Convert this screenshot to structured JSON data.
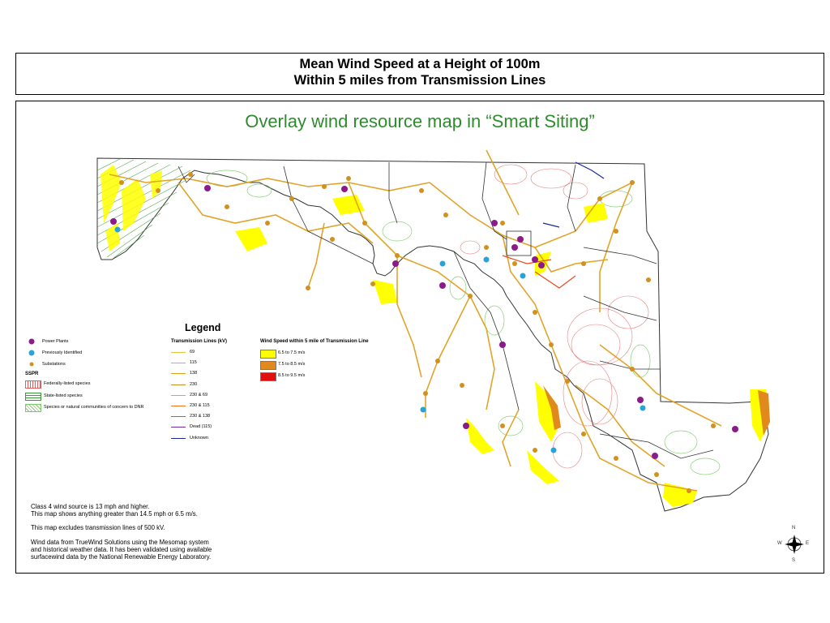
{
  "title": {
    "line1": "Mean Wind Speed at a Height of 100m",
    "line2": "Within 5 miles from Transmission Lines"
  },
  "subtitle": "Overlay wind resource map in “Smart Siting”",
  "legend": {
    "title": "Legend",
    "points": [
      {
        "label": "Power Plants",
        "color": "#8b1a8b"
      },
      {
        "label": "Previously Identified",
        "color": "#29a3d6"
      },
      {
        "label": "Substations",
        "color": "#d4901f"
      }
    ],
    "sspr_label": "SSPR",
    "species": [
      {
        "label": "Federally-listed species",
        "color": "#e06060"
      },
      {
        "label": "State-listed species",
        "color": "#3a9a3a"
      },
      {
        "label": "Species or natural communities of concern to DNR",
        "color": "#7cc96a"
      }
    ],
    "transmission_title": "Transmission Lines (kV)",
    "transmission": [
      {
        "label": "69",
        "color": "#e8c23a"
      },
      {
        "label": "115",
        "color": "#e8b020"
      },
      {
        "label": "138",
        "color": "#e0a020"
      },
      {
        "label": "230",
        "color": "#c8902a"
      },
      {
        "label": "230 & 69",
        "color": "#f0a030"
      },
      {
        "label": "230 & 115",
        "color": "#f07020"
      },
      {
        "label": "230 & 138",
        "color": "#e84a20"
      },
      {
        "label": "Dead (115)",
        "color": "#7a2aa8"
      },
      {
        "label": "Unknown",
        "color": "#1a2a9a"
      }
    ],
    "wind_title": "Wind Speed within 5 mile of Transmission Line",
    "wind": [
      {
        "label": "6.5 to 7.5 m/s",
        "color": "#ffff00"
      },
      {
        "label": "7.5 to 8.5 m/s",
        "color": "#e08a1e"
      },
      {
        "label": "8.5 to 9.5 m/s",
        "color": "#e01010"
      }
    ]
  },
  "notes": {
    "line1": "Class 4 wind source is 13 mph and higher.",
    "line2": "This map shows anything greater than 14.5 mph or 6.5 m/s.",
    "line3": "This map excludes transmission lines of 500 kV.",
    "line4": "Wind data from TrueWind Solutions using the Mesomap system",
    "line5": "and historical weather data.  It has been validated using available",
    "line6": "surfacewind data by the National Renewable Energy Laboratory."
  },
  "compass": {
    "n": "N",
    "s": "S",
    "e": "E",
    "w": "W"
  }
}
